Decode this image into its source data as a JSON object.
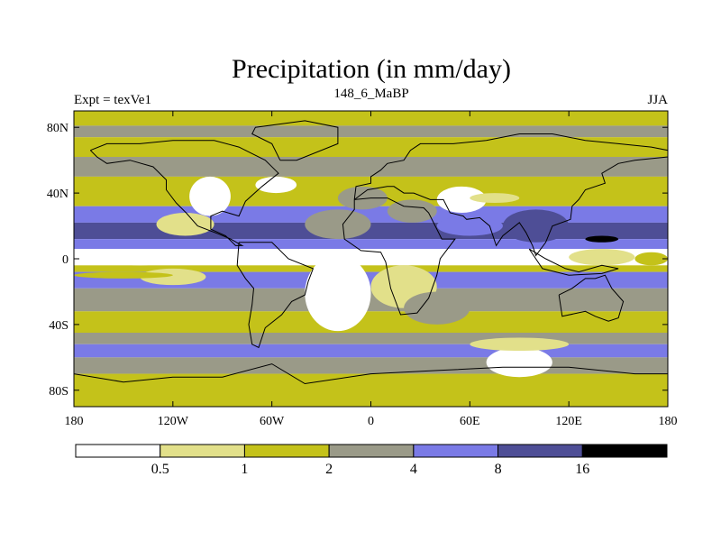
{
  "title": "Precipitation (in mm/day)",
  "left_label": "Expt = texVe1",
  "center_label": "148_6_MaBP",
  "right_label": "JJA",
  "map": {
    "lon_range": [
      -180,
      180
    ],
    "lat_range": [
      -90,
      90
    ],
    "y_ticks": [
      {
        "lat": 80,
        "label": "80N"
      },
      {
        "lat": 40,
        "label": "40N"
      },
      {
        "lat": 0,
        "label": "0"
      },
      {
        "lat": -40,
        "label": "40S"
      },
      {
        "lat": -80,
        "label": "80S"
      }
    ],
    "x_ticks": [
      {
        "lon": -180,
        "label": "180"
      },
      {
        "lon": -120,
        "label": "120W"
      },
      {
        "lon": -60,
        "label": "60W"
      },
      {
        "lon": 0,
        "label": "0"
      },
      {
        "lon": 60,
        "label": "60E"
      },
      {
        "lon": 120,
        "label": "120E"
      },
      {
        "lon": 180,
        "label": "180"
      }
    ],
    "bands": [
      {
        "lat": [
          90,
          81
        ],
        "bin": 2
      },
      {
        "lat": [
          81,
          74
        ],
        "bin": 3
      },
      {
        "lat": [
          74,
          62
        ],
        "bin": 2
      },
      {
        "lat": [
          62,
          50
        ],
        "bin": 3
      },
      {
        "lat": [
          50,
          32
        ],
        "bin": 2
      },
      {
        "lat": [
          32,
          22
        ],
        "bin": 4
      },
      {
        "lat": [
          22,
          12
        ],
        "bin": 5
      },
      {
        "lat": [
          12,
          6
        ],
        "bin": 4
      },
      {
        "lat": [
          6,
          -4
        ],
        "bin": 0
      },
      {
        "lat": [
          -4,
          -8
        ],
        "bin": 2
      },
      {
        "lat": [
          -8,
          -18
        ],
        "bin": 4
      },
      {
        "lat": [
          -18,
          -32
        ],
        "bin": 3
      },
      {
        "lat": [
          -32,
          -45
        ],
        "bin": 2
      },
      {
        "lat": [
          -45,
          -52
        ],
        "bin": 3
      },
      {
        "lat": [
          -52,
          -60
        ],
        "bin": 4
      },
      {
        "lat": [
          -60,
          -70
        ],
        "bin": 3
      },
      {
        "lat": [
          -70,
          -90
        ],
        "bin": 2
      }
    ],
    "patches": [
      {
        "lon": [
          -130,
          -95
        ],
        "lat": [
          28,
          14
        ],
        "bin": 1
      },
      {
        "lon": [
          -110,
          -85
        ],
        "lat": [
          50,
          26
        ],
        "bin": 0
      },
      {
        "lon": [
          -70,
          -45
        ],
        "lat": [
          50,
          40
        ],
        "bin": 0
      },
      {
        "lon": [
          -160,
          -120
        ],
        "lat": [
          4,
          -4
        ],
        "bin": 0
      },
      {
        "lon": [
          -140,
          -100
        ],
        "lat": [
          -6,
          -16
        ],
        "bin": 1
      },
      {
        "lon": [
          -40,
          0
        ],
        "lat": [
          30,
          12
        ],
        "bin": 3
      },
      {
        "lon": [
          -20,
          10
        ],
        "lat": [
          44,
          30
        ],
        "bin": 3
      },
      {
        "lon": [
          10,
          40
        ],
        "lat": [
          36,
          22
        ],
        "bin": 3
      },
      {
        "lon": [
          40,
          80
        ],
        "lat": [
          26,
          14
        ],
        "bin": 4
      },
      {
        "lon": [
          80,
          120
        ],
        "lat": [
          30,
          10
        ],
        "bin": 5
      },
      {
        "lon": [
          130,
          150
        ],
        "lat": [
          14,
          10
        ],
        "bin": 6
      },
      {
        "lon": [
          40,
          70
        ],
        "lat": [
          44,
          28
        ],
        "bin": 0
      },
      {
        "lon": [
          60,
          90
        ],
        "lat": [
          40,
          34
        ],
        "bin": 1
      },
      {
        "lon": [
          -40,
          0
        ],
        "lat": [
          2,
          -44
        ],
        "bin": 0
      },
      {
        "lon": [
          0,
          40
        ],
        "lat": [
          -4,
          -30
        ],
        "bin": 1
      },
      {
        "lon": [
          20,
          60
        ],
        "lat": [
          -20,
          -40
        ],
        "bin": 3
      },
      {
        "lon": [
          70,
          110
        ],
        "lat": [
          -54,
          -72
        ],
        "bin": 0
      },
      {
        "lon": [
          60,
          120
        ],
        "lat": [
          -48,
          -56
        ],
        "bin": 1
      },
      {
        "lon": [
          120,
          160
        ],
        "lat": [
          6,
          -4
        ],
        "bin": 1
      },
      {
        "lon": [
          160,
          180
        ],
        "lat": [
          4,
          -4
        ],
        "bin": 2
      },
      {
        "lon": [
          -180,
          -120
        ],
        "lat": [
          -8,
          -12
        ],
        "bin": 2
      }
    ]
  },
  "colorbar": {
    "colors": [
      "#ffffff",
      "#e2e08a",
      "#c4c21a",
      "#9a9a88",
      "#7a7ae6",
      "#4e4e96",
      "#000000"
    ],
    "labels": [
      "0.5",
      "1",
      "2",
      "4",
      "8",
      "16"
    ]
  }
}
